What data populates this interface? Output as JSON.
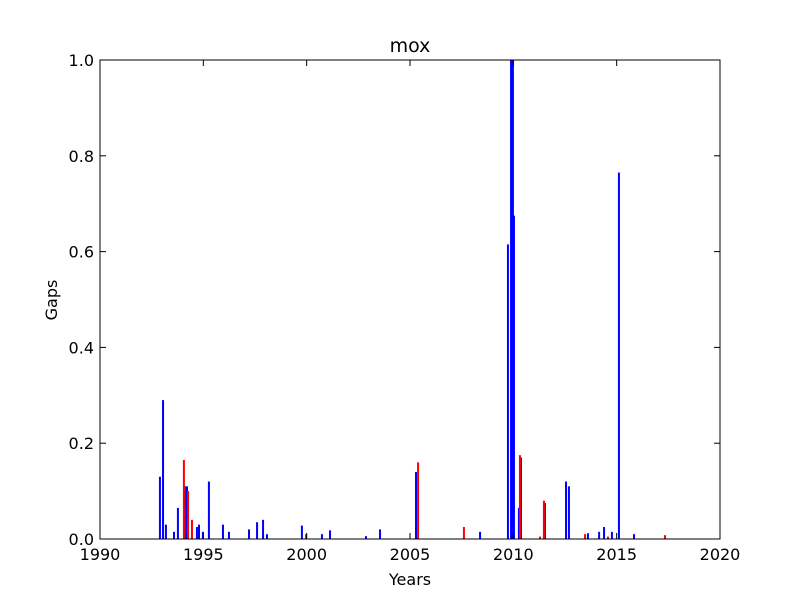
{
  "chart_data": {
    "type": "bar",
    "title": "mox",
    "x_label": "Years",
    "y_label": "Gaps",
    "xlim": [
      1990,
      2020
    ],
    "xticks": [
      1990,
      1995,
      2000,
      2005,
      2010,
      2015,
      2020
    ],
    "ylim": [
      0,
      1
    ],
    "yticks": [
      {
        "value": 0,
        "label": "0.0"
      },
      {
        "value": 0.2,
        "label": "0.2"
      },
      {
        "value": 0.4,
        "label": "0.4"
      },
      {
        "value": 0.6,
        "label": "0.6"
      },
      {
        "value": 0.8,
        "label": "0.8"
      },
      {
        "value": 1,
        "label": "1.0"
      }
    ],
    "series": [
      {
        "color": "#0000ff",
        "x": [
          1992.9,
          1993.05,
          1993.19,
          1993.58,
          1993.77,
          1994.11,
          1994.21,
          1994.69,
          1994.79,
          1994.98,
          1995.27,
          1995.95,
          1996.24,
          1997.21,
          1997.6,
          1997.89,
          1998.08,
          1999.77,
          2000.74,
          2001.13,
          2002.87,
          2003.55,
          2005.29,
          2008.39,
          2009.74,
          2009.89,
          2009.98,
          2010.03,
          2010.27,
          2010.37,
          2011.53,
          2012.55,
          2012.69,
          2013.61,
          2014.15,
          2014.39,
          2014.77,
          2015.11,
          2015.84
        ],
        "values": [
          0.13,
          0.29,
          0.03,
          0.015,
          0.065,
          0.11,
          0.11,
          0.025,
          0.03,
          0.015,
          0.12,
          0.03,
          0.015,
          0.02,
          0.035,
          0.04,
          0.01,
          0.028,
          0.01,
          0.018,
          0.006,
          0.02,
          0.14,
          0.015,
          0.615,
          1.0,
          1.0,
          0.675,
          0.065,
          0.17,
          0.075,
          0.12,
          0.11,
          0.012,
          0.015,
          0.025,
          0.015,
          0.765,
          0.01
        ]
      },
      {
        "color": "#ff0000",
        "x": [
          1994.06,
          1994.26,
          1994.45,
          1999.97,
          2005.39,
          2007.61,
          2010.32,
          2011.29,
          2011.48,
          2013.47,
          2014.58,
          2017.34
        ],
        "values": [
          0.165,
          0.1,
          0.04,
          0.01,
          0.16,
          0.025,
          0.175,
          0.005,
          0.08,
          0.01,
          0.005,
          0.008
        ]
      }
    ]
  }
}
